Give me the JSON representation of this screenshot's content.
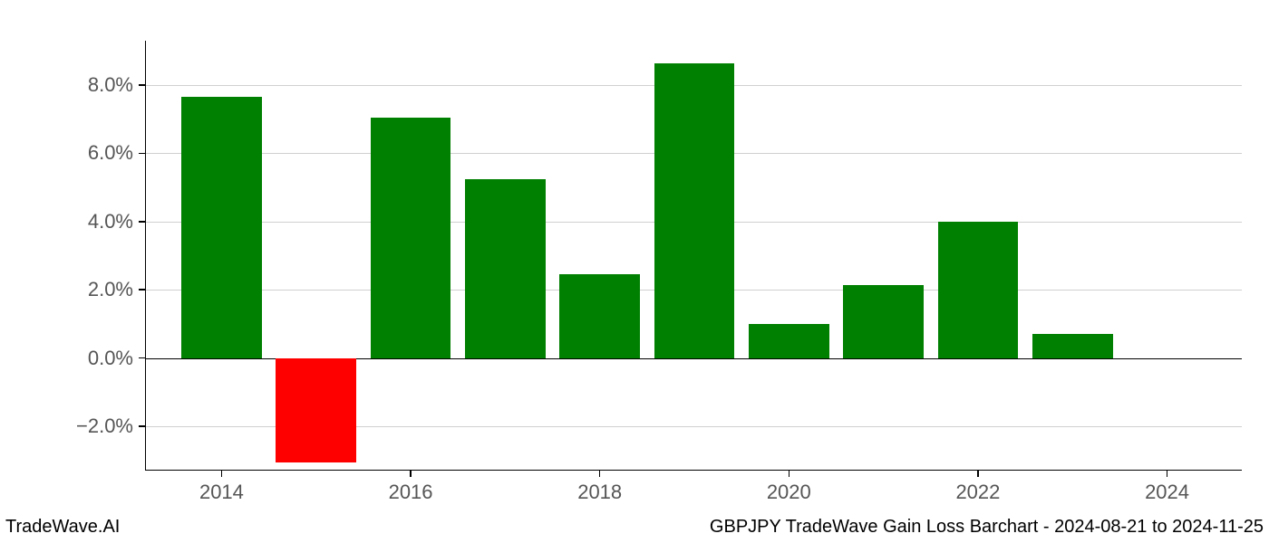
{
  "chart": {
    "type": "bar",
    "years": [
      2014,
      2015,
      2016,
      2017,
      2018,
      2019,
      2020,
      2021,
      2022,
      2023
    ],
    "values": [
      7.65,
      -3.05,
      7.05,
      5.25,
      2.45,
      8.65,
      1.0,
      2.15,
      4.0,
      0.7
    ],
    "positive_color": "#008000",
    "negative_color": "#ff0000",
    "background_color": "#ffffff",
    "grid_color": "#d0d0d0",
    "axis_color": "#000000",
    "tick_label_color": "#555555",
    "ylim_min": -3.3,
    "ylim_max": 9.3,
    "yticks": [
      -2.0,
      0.0,
      2.0,
      4.0,
      6.0,
      8.0
    ],
    "ytick_labels": [
      "−2.0%",
      "0.0%",
      "2.0%",
      "4.0%",
      "6.0%",
      "8.0%"
    ],
    "xticks": [
      2014,
      2016,
      2018,
      2020,
      2022,
      2024
    ],
    "x_min": 2013.2,
    "x_max": 2024.8,
    "bar_width_years": 0.85,
    "tick_fontsize": 22,
    "footer_fontsize": 20
  },
  "footer": {
    "left": "TradeWave.AI",
    "right": "GBPJPY TradeWave Gain Loss Barchart - 2024-08-21 to 2024-11-25"
  }
}
